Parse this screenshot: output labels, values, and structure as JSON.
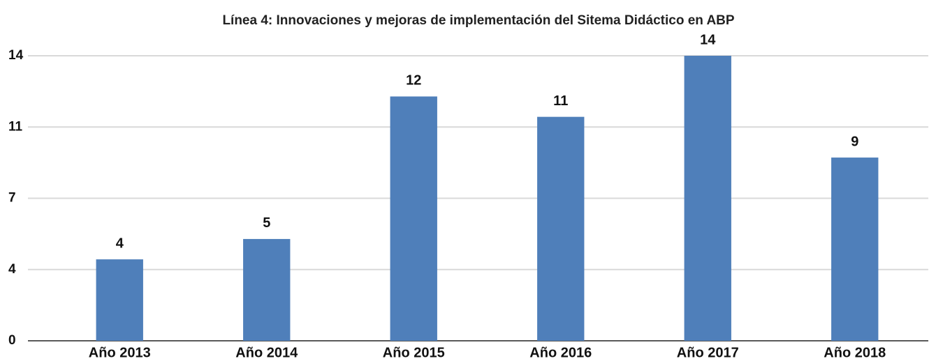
{
  "chart_data": {
    "type": "bar",
    "title": "Línea 4: Innovaciones y mejoras de implementación del Sitema Didáctico en ABP",
    "categories": [
      "Año 2013",
      "Año 2014",
      "Año 2015",
      "Año 2016",
      "Año 2017",
      "Año 2018"
    ],
    "values": [
      4,
      5,
      12,
      11,
      14,
      9
    ],
    "color": "#4f7fba",
    "ylim": [
      0,
      14
    ],
    "yticks": [
      0,
      {
        "value": 3.5,
        "label": "4"
      },
      7,
      {
        "value": 10.5,
        "label": "11"
      },
      14
    ],
    "grid": true,
    "data_labels": true
  }
}
